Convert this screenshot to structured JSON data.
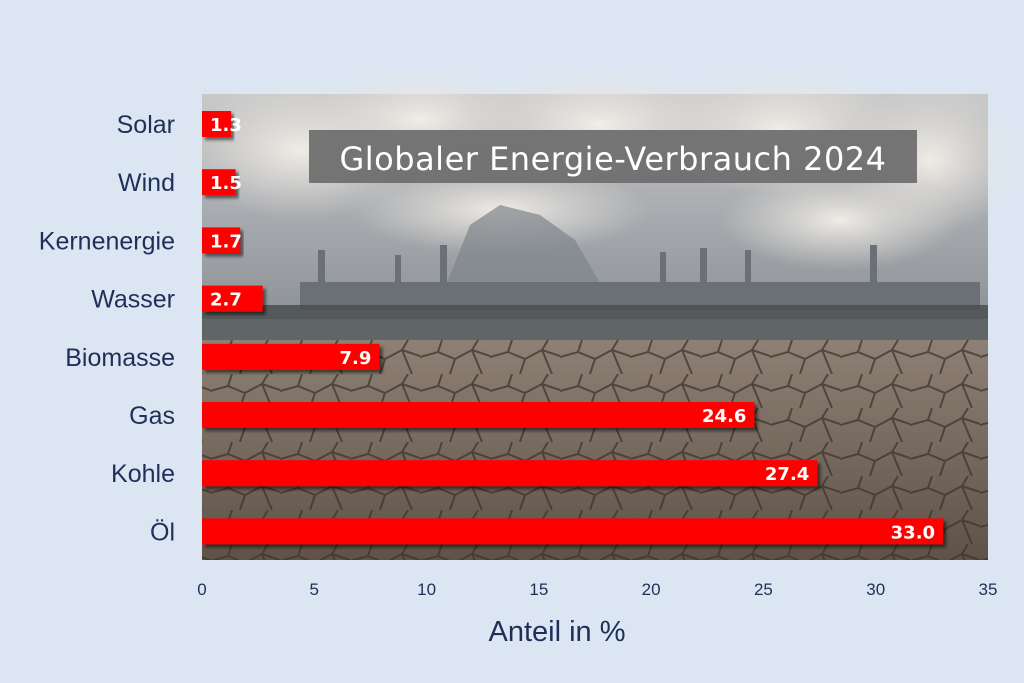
{
  "chart_data": {
    "type": "bar",
    "orientation": "horizontal",
    "title": "Globaler Energie-Verbrauch 2024",
    "xlabel": "Anteil in %",
    "ylabel": "",
    "categories": [
      "Solar",
      "Wind",
      "Kernenergie",
      "Wasser",
      "Biomasse",
      "Gas",
      "Kohle",
      "Öl"
    ],
    "values": [
      1.3,
      1.5,
      1.7,
      2.7,
      7.9,
      24.6,
      27.4,
      33.0
    ],
    "value_labels": [
      "1.3",
      "1.5",
      "1.7",
      "2.7",
      "7.9",
      "24.6",
      "27.4",
      "33.0"
    ],
    "xlim": [
      0,
      35
    ],
    "xticks": [
      "0",
      "5",
      "10",
      "15",
      "20",
      "25",
      "30",
      "35"
    ],
    "grid": false,
    "legend": "none",
    "colors": {
      "bar": "#ff0000",
      "bar_shadow": "#8a0000",
      "label_text": "#1f2f5a",
      "background": "#dce6f2",
      "title_box": "#6f6f6f"
    },
    "background_image": "industrial-smokestacks-over-cracked-dry-earth"
  }
}
